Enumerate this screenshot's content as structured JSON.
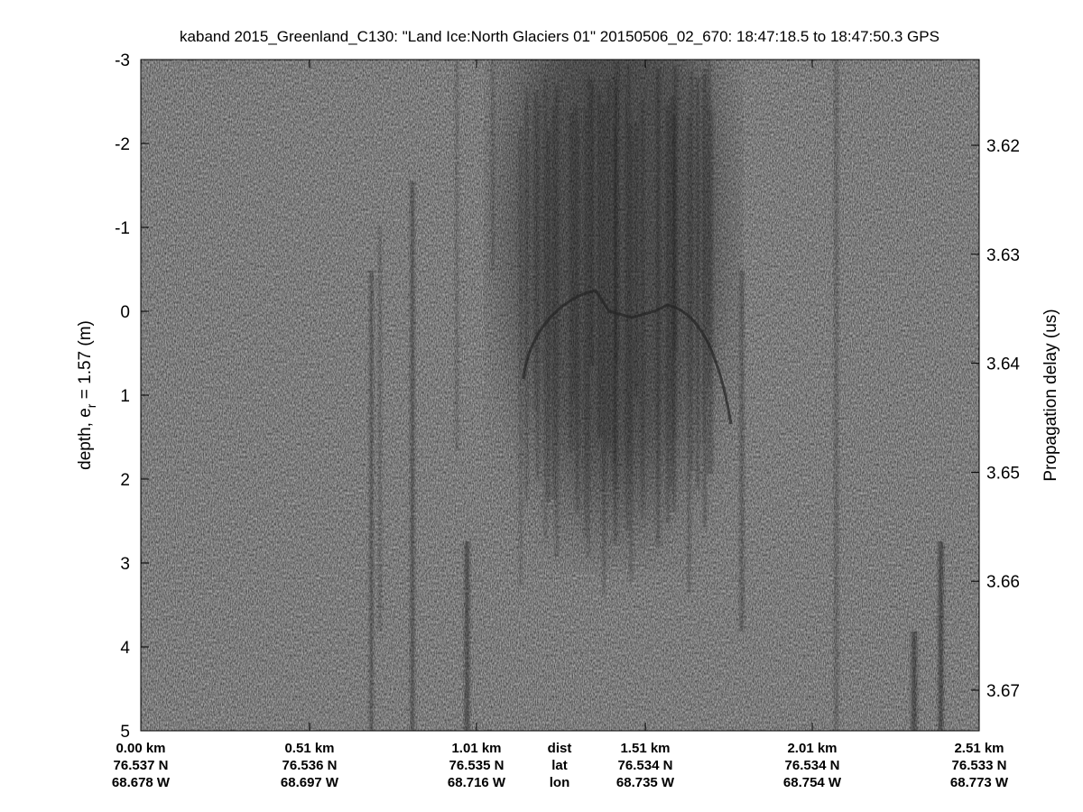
{
  "chart_data": {
    "type": "heatmap",
    "title": "kaband 2015_Greenland_C130: \"Land Ice:North Glaciers 01\"  20150506_02_670: 18:47:18.5 to 18:47:50.3 GPS",
    "ylabel_left": "depth, e",
    "ylabel_left_sub": "r",
    "ylabel_left_tail": " = 1.57 (m)",
    "ylabel_right": "Propagation delay (us)",
    "ylim_left": [
      -3,
      5
    ],
    "yticks_left": [
      "-3",
      "-2",
      "-1",
      "0",
      "1",
      "2",
      "3",
      "4",
      "5"
    ],
    "yticks_right": [
      "3.62",
      "3.63",
      "3.64",
      "3.65",
      "3.66",
      "3.67"
    ],
    "colormap": "grayscale",
    "grid": false,
    "x_rows": {
      "row_labels": [
        "dist",
        "lat",
        "lon"
      ],
      "dist": [
        "0.00 km",
        "0.51 km",
        "1.01 km",
        "1.51 km",
        "2.01 km",
        "2.51 km"
      ],
      "lat": [
        "76.537 N",
        "76.536 N",
        "76.535 N",
        "76.534 N",
        "76.534 N",
        "76.533 N"
      ],
      "lon": [
        "68.678 W",
        "68.697 W",
        "68.716 W",
        "68.735 W",
        "68.754 W",
        "68.773 W"
      ]
    }
  }
}
